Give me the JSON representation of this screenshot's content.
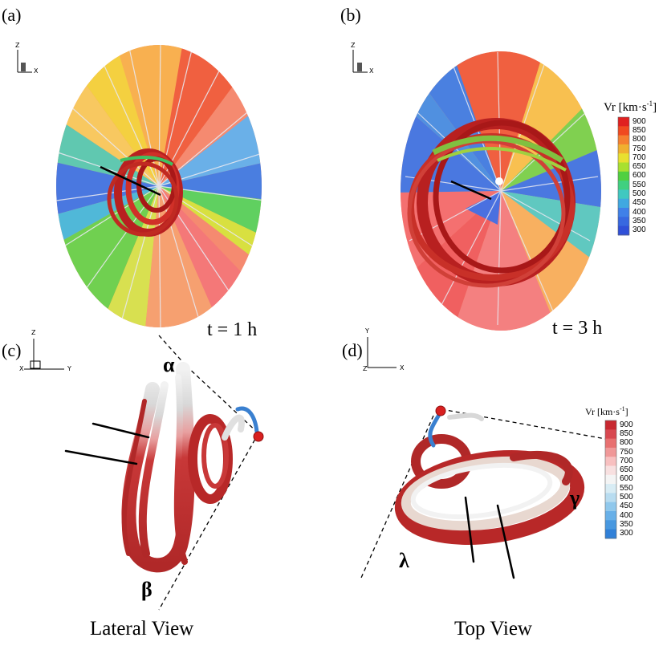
{
  "panels": {
    "a": {
      "label": "(a)",
      "time": "t = 1 h"
    },
    "b": {
      "label": "(b)",
      "time": "t = 3 h"
    },
    "c": {
      "label": "(c)",
      "caption": "Lateral View"
    },
    "d": {
      "label": "(d)",
      "caption": "Top View"
    }
  },
  "greek": {
    "alpha": "α",
    "beta": "β",
    "gamma": "γ",
    "lambda": "λ"
  },
  "axes": {
    "a": {
      "up": "Z",
      "right": "X"
    },
    "b": {
      "up": "Z",
      "right": "X"
    },
    "c": {
      "up": "Z",
      "left": "X",
      "right": "Y"
    },
    "d": {
      "up": "Y",
      "left": "Z",
      "right": "X"
    }
  },
  "colorbar_top": {
    "title_main": "Vr [km·s",
    "title_sup": "-1",
    "title_end": "]",
    "ticks": [
      "900",
      "850",
      "800",
      "750",
      "700",
      "650",
      "600",
      "550",
      "500",
      "450",
      "400",
      "350",
      "300"
    ],
    "colors": [
      "#e02020",
      "#f04a20",
      "#f58030",
      "#f0b030",
      "#e8e030",
      "#a8e030",
      "#50d040",
      "#40d080",
      "#40c8c0",
      "#40a8e0",
      "#4080e8",
      "#3868e0",
      "#3050d8"
    ]
  },
  "colorbar_bottom": {
    "title_main": "Vr [km·s",
    "title_sup": "-1",
    "title_end": "]",
    "ticks": [
      "900",
      "850",
      "800",
      "750",
      "700",
      "650",
      "600",
      "550",
      "500",
      "450",
      "400",
      "350",
      "300"
    ],
    "colors": [
      "#c82830",
      "#d84850",
      "#e87070",
      "#f09898",
      "#f8c0c0",
      "#f8e0e0",
      "#f4f4f4",
      "#d8ecf4",
      "#b8dcf0",
      "#90c8ec",
      "#68b0e8",
      "#4898e0",
      "#3080d8"
    ]
  }
}
